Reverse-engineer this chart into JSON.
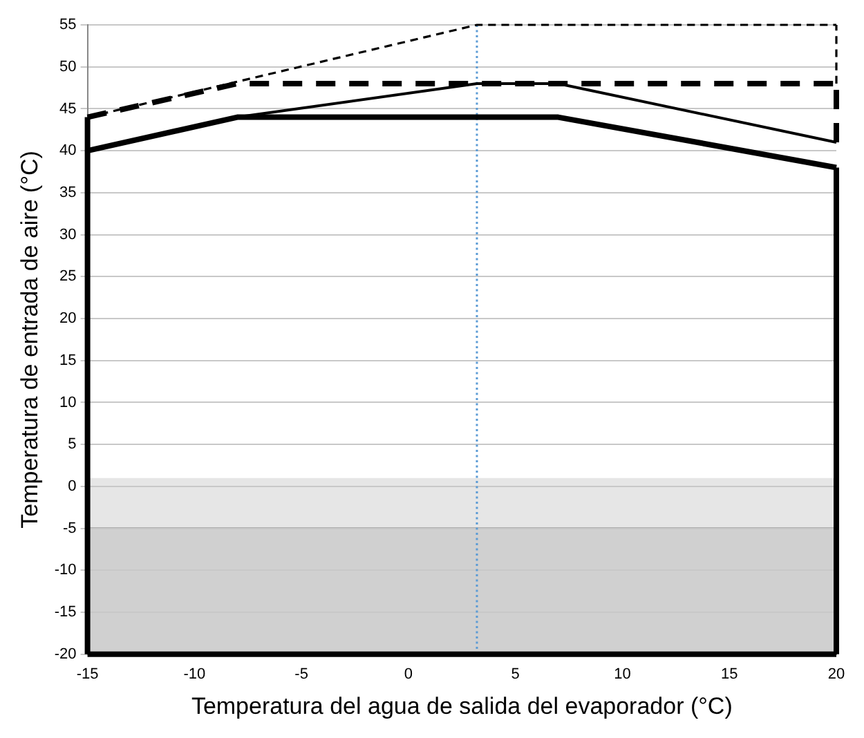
{
  "chart_data": {
    "type": "line",
    "xlabel": "Temperatura del agua de salida del evaporador (°C)",
    "ylabel": "Temperatura de entrada de aire (°C)",
    "xlim": [
      -15,
      20
    ],
    "xticks": [
      -15,
      -10,
      -5,
      0,
      5,
      10,
      15,
      20
    ],
    "ylim": [
      -20,
      55
    ],
    "yticks": [
      -20,
      -15,
      -10,
      -5,
      0,
      5,
      10,
      15,
      20,
      25,
      30,
      35,
      40,
      45,
      50,
      55
    ],
    "grid": "y",
    "marker": "none",
    "legend": false,
    "series": [
      {
        "color": "#000000",
        "line_style": "solid",
        "x": [
          -15,
          -8,
          7,
          20
        ],
        "values": [
          40,
          44,
          44,
          38
        ]
      },
      {
        "color": "#000000",
        "line_style": "solid",
        "x": [
          -8,
          3.2,
          7,
          20
        ],
        "values": [
          44,
          48,
          48,
          41
        ]
      },
      {
        "color": "#000000",
        "line_style": "dashed",
        "x": [
          -15,
          -8,
          20
        ],
        "values": [
          44,
          48,
          48
        ]
      },
      {
        "color": "#000000",
        "line_style": "dashed",
        "x": [
          -15,
          3.2,
          20
        ],
        "values": [
          44,
          55,
          55
        ]
      },
      {
        "color": "#000000",
        "line_style": "solid",
        "x": [
          -15,
          20
        ],
        "values": [
          -20,
          -20
        ]
      },
      {
        "color": "#000000",
        "line_style": "solid",
        "x": [
          -15,
          -15
        ],
        "values": [
          -20,
          44
        ]
      },
      {
        "color": "#000000",
        "line_style": "solid",
        "x": [
          20,
          20
        ],
        "values": [
          -20,
          38
        ]
      },
      {
        "color": "#000000",
        "line_style": "dashed",
        "x": [
          20,
          20
        ],
        "values": [
          41,
          48
        ]
      },
      {
        "color": "#000000",
        "line_style": "dashed",
        "x": [
          20,
          20
        ],
        "values": [
          48,
          55
        ]
      }
    ],
    "bands": [
      {
        "axis": "y",
        "from": -5,
        "to": 1,
        "color": "#e6e6e6"
      },
      {
        "axis": "y",
        "from": -20,
        "to": -5,
        "color": "#d0d0d0"
      }
    ],
    "ref_lines": [
      {
        "axis": "x",
        "value": 3.2,
        "color": "#5b9bd5",
        "line_style": "dotted"
      }
    ]
  }
}
